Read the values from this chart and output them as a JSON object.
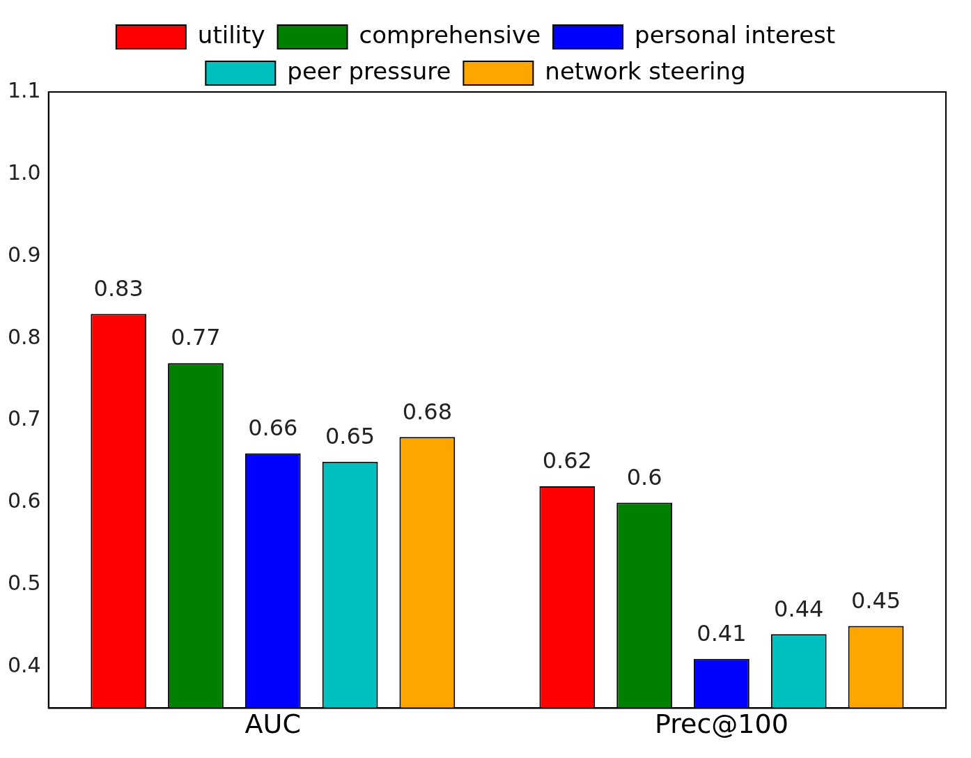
{
  "chart_data": {
    "type": "bar",
    "categories": [
      "AUC",
      "Prec@100"
    ],
    "series": [
      {
        "name": "utility",
        "color": "#ff0000",
        "values": [
          0.83,
          0.62
        ]
      },
      {
        "name": "comprehensive",
        "color": "#008000",
        "values": [
          0.77,
          0.6
        ]
      },
      {
        "name": "personal interest",
        "color": "#0000ff",
        "values": [
          0.66,
          0.41
        ]
      },
      {
        "name": "peer pressure",
        "color": "#00bfbf",
        "values": [
          0.65,
          0.44
        ]
      },
      {
        "name": "network steering",
        "color": "#ffa500",
        "values": [
          0.68,
          0.45
        ]
      }
    ],
    "ylim": [
      0.35,
      1.1
    ],
    "yticks": [
      0.4,
      0.5,
      0.6,
      0.7,
      0.8,
      0.9,
      {
        "value": 1,
        "label": "1.0"
      },
      1.1
    ],
    "grid": false,
    "legend": "top",
    "data_labels": true
  }
}
